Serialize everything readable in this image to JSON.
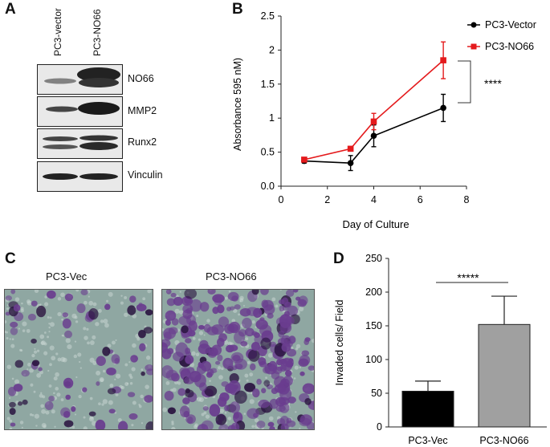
{
  "panels": {
    "a": "A",
    "b": "B",
    "c": "C",
    "d": "D"
  },
  "western_blot": {
    "lanes": [
      "PC3-vector",
      "PC3-NO66"
    ],
    "proteins": [
      "NO66",
      "MMP2",
      "Runx2",
      "Vinculin"
    ]
  },
  "micrographs": {
    "labels": [
      "PC3-Vec",
      "PC3-NO66"
    ],
    "colors": {
      "background": "#8fa7a2",
      "cell": "#6a3d8f",
      "dark_cell": "#2a1440"
    }
  },
  "significance": {
    "line_chart": "****",
    "bar_chart": "*****"
  },
  "chart_data": [
    {
      "type": "line",
      "ylabel": "Absorbance 595 nM)",
      "xlabel": "Day of  Culture",
      "xlim": [
        0,
        8
      ],
      "ylim": [
        0,
        2.5
      ],
      "x_ticks": [
        "0",
        "2",
        "4",
        "6",
        "8"
      ],
      "y_ticks": [
        "0.0",
        "0.5",
        "1",
        "1.5",
        "2",
        "2.5"
      ],
      "legend_position": "top-right",
      "series": [
        {
          "name": "PC3-Vector",
          "color": "#000000",
          "marker": "circle",
          "x": [
            1,
            3,
            4,
            7
          ],
          "values": [
            0.37,
            0.34,
            0.74,
            1.15
          ],
          "errors": [
            0.03,
            0.11,
            0.16,
            0.2
          ]
        },
        {
          "name": "PC3-NO66",
          "color": "#e41a1c",
          "marker": "square",
          "x": [
            1,
            3,
            4,
            7
          ],
          "values": [
            0.39,
            0.55,
            0.95,
            1.85
          ],
          "errors": [
            0.02,
            0.03,
            0.12,
            0.27
          ]
        }
      ]
    },
    {
      "type": "bar",
      "ylabel": "Invaded  cells/ Field",
      "categories": [
        "PC3-Vec",
        "PC3-NO66"
      ],
      "values": [
        53,
        152
      ],
      "errors": [
        15,
        42
      ],
      "colors": [
        "#000000",
        "#a0a0a0"
      ],
      "ylim": [
        0,
        250
      ],
      "y_ticks": [
        "0",
        "50",
        "100",
        "150",
        "200",
        "250"
      ]
    }
  ]
}
